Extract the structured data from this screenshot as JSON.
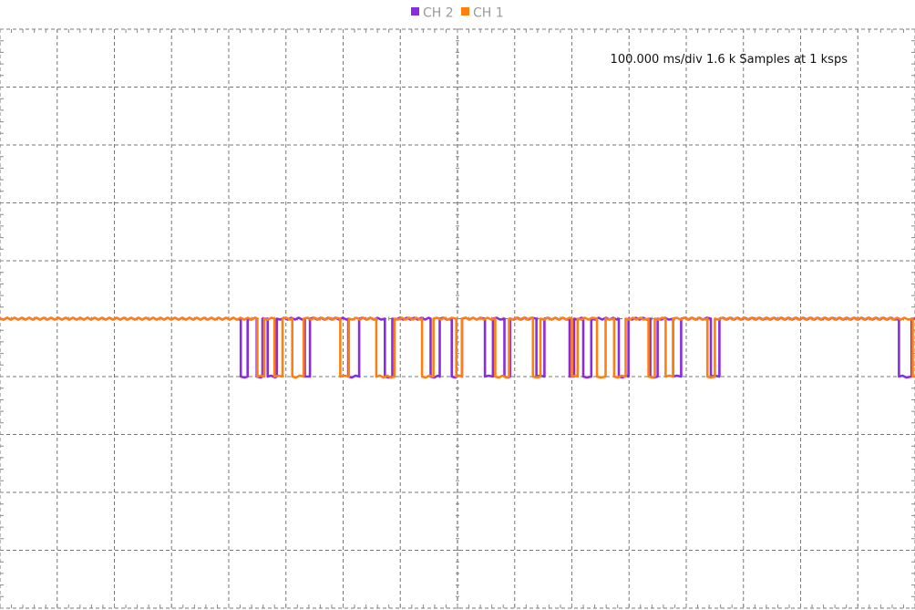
{
  "chart_data": {
    "type": "line",
    "title": "",
    "xlabel": "",
    "ylabel": "",
    "readout": "100.000 ms/div 1.6 k Samples at 1 ksps",
    "legend_placement": "top-center",
    "grid": true,
    "x_divisions": 16,
    "y_divisions": 10,
    "xlim": [
      0,
      1.6
    ],
    "ylim": [
      -4,
      6
    ],
    "x_unit": "s",
    "legend": [
      {
        "name": "CH 2",
        "color": "#8a2be2"
      },
      {
        "name": "CH 1",
        "color": "#ff7f0e"
      }
    ],
    "series": [
      {
        "name": "CH 2",
        "color": "#8a2be2",
        "levels": {
          "high": 1.0,
          "low": 0.0
        },
        "transitions": [
          0.421,
          0.433,
          0.449,
          0.459,
          0.468,
          0.484,
          0.533,
          0.542,
          0.609,
          0.628,
          0.673,
          0.686,
          0.753,
          0.769,
          0.79,
          0.808,
          0.848,
          0.862,
          0.882,
          0.892,
          0.938,
          0.952,
          0.996,
          1.004,
          1.02,
          1.034,
          1.082,
          1.099,
          1.137,
          1.15,
          1.177,
          1.191,
          1.243,
          1.258,
          1.572,
          1.594
        ],
        "start_level": "high"
      },
      {
        "name": "CH 1",
        "color": "#ff7f0e",
        "levels": {
          "high": 1.0,
          "low": 0.0
        },
        "transitions": [
          0.45,
          0.462,
          0.48,
          0.494,
          0.511,
          0.531,
          0.595,
          0.61,
          0.658,
          0.69,
          0.738,
          0.758,
          0.798,
          0.808,
          0.866,
          0.89,
          0.932,
          0.945,
          1.0,
          1.01,
          1.044,
          1.059,
          1.074,
          1.094,
          1.134,
          1.145,
          1.164,
          1.177,
          1.237,
          1.25,
          1.596
        ],
        "start_level": "high"
      }
    ]
  }
}
